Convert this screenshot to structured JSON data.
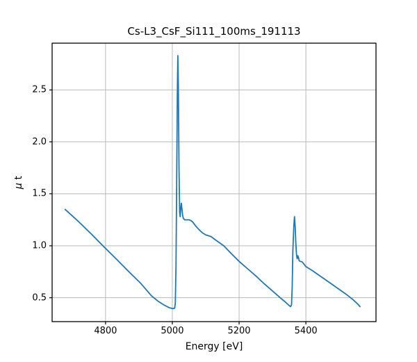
{
  "chart_data": {
    "type": "line",
    "title": "Cs-L3_CsF_Si111_100ms_191113",
    "xlabel": "Energy [eV]",
    "ylabel": "μ t",
    "xlim": [
      4640,
      5610
    ],
    "ylim": [
      0.27,
      2.95
    ],
    "grid": true,
    "grid_color": "#b8b8b8",
    "line_color": "#1f77b4",
    "x_ticks": [
      4800,
      5000,
      5200,
      5400
    ],
    "x_tick_labels": [
      "4800",
      "5000",
      "5200",
      "5400"
    ],
    "y_ticks": [
      0.5,
      1.0,
      1.5,
      2.0,
      2.5
    ],
    "y_tick_labels": [
      "0.5",
      "1.0",
      "1.5",
      "2.0",
      "2.5"
    ],
    "series": [
      {
        "name": "mu_t_vs_energy",
        "points": [
          [
            4679,
            1.35
          ],
          [
            4720,
            1.23
          ],
          [
            4760,
            1.105
          ],
          [
            4792,
            1.0
          ],
          [
            4830,
            0.88
          ],
          [
            4870,
            0.75
          ],
          [
            4905,
            0.64
          ],
          [
            4937,
            0.52
          ],
          [
            4958,
            0.465
          ],
          [
            4975,
            0.43
          ],
          [
            4990,
            0.405
          ],
          [
            5002,
            0.395
          ],
          [
            5007,
            0.4
          ],
          [
            5009,
            0.45
          ],
          [
            5011,
            0.8
          ],
          [
            5013,
            1.6
          ],
          [
            5015,
            2.45
          ],
          [
            5016.5,
            2.83
          ],
          [
            5018,
            2.55
          ],
          [
            5020,
            1.75
          ],
          [
            5022,
            1.32
          ],
          [
            5023.5,
            1.28
          ],
          [
            5025.5,
            1.37
          ],
          [
            5027,
            1.41
          ],
          [
            5029,
            1.35
          ],
          [
            5031,
            1.29
          ],
          [
            5033,
            1.265
          ],
          [
            5037,
            1.25
          ],
          [
            5043,
            1.25
          ],
          [
            5050,
            1.25
          ],
          [
            5057,
            1.24
          ],
          [
            5062,
            1.225
          ],
          [
            5070,
            1.19
          ],
          [
            5080,
            1.155
          ],
          [
            5090,
            1.125
          ],
          [
            5100,
            1.105
          ],
          [
            5110,
            1.095
          ],
          [
            5115,
            1.09
          ],
          [
            5130,
            1.055
          ],
          [
            5154,
            1.0
          ],
          [
            5175,
            0.93
          ],
          [
            5200,
            0.85
          ],
          [
            5225,
            0.78
          ],
          [
            5250,
            0.71
          ],
          [
            5275,
            0.635
          ],
          [
            5300,
            0.565
          ],
          [
            5323,
            0.5
          ],
          [
            5338,
            0.46
          ],
          [
            5348,
            0.43
          ],
          [
            5354,
            0.415
          ],
          [
            5357,
            0.43
          ],
          [
            5359,
            0.6
          ],
          [
            5361,
            0.95
          ],
          [
            5364,
            1.2
          ],
          [
            5366,
            1.28
          ],
          [
            5368,
            1.18
          ],
          [
            5370,
            1.02
          ],
          [
            5372,
            0.91
          ],
          [
            5374,
            0.875
          ],
          [
            5376,
            0.905
          ],
          [
            5378,
            0.885
          ],
          [
            5380,
            0.855
          ],
          [
            5384,
            0.85
          ],
          [
            5389,
            0.845
          ],
          [
            5394,
            0.825
          ],
          [
            5400,
            0.8
          ],
          [
            5420,
            0.76
          ],
          [
            5440,
            0.715
          ],
          [
            5460,
            0.67
          ],
          [
            5480,
            0.625
          ],
          [
            5500,
            0.58
          ],
          [
            5520,
            0.535
          ],
          [
            5540,
            0.485
          ],
          [
            5555,
            0.44
          ],
          [
            5562,
            0.415
          ]
        ]
      }
    ]
  }
}
